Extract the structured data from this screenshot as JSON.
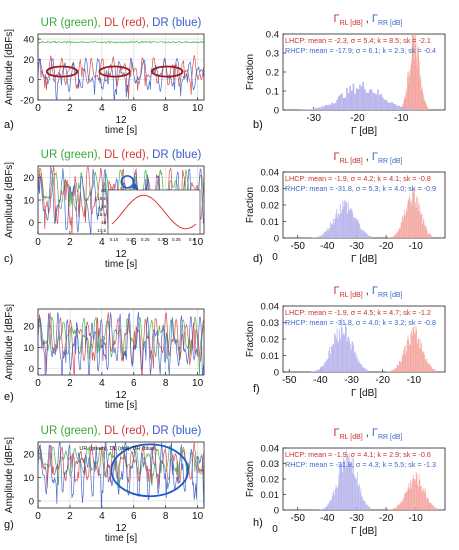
{
  "colors": {
    "ur": "#3aa83a",
    "dl": "#d83a3a",
    "dr": "#3a5cc8",
    "lhcp_fill": "#f4a6a0",
    "rhcp_fill": "#b8b6ec",
    "lhcp_text": "#c8302a",
    "rhcp_text": "#3a68c8",
    "axis": "#000000"
  },
  "chart_data": [
    {
      "panel": "a)",
      "type": "line",
      "title_parts": [
        "UR (green), ",
        "DL (red), ",
        "DR (blue)"
      ],
      "title_colors": [
        "ur",
        "dl",
        "dr"
      ],
      "ylabel": "Amplitude [dBFs]",
      "xlabel_extra": "12",
      "xlabel": "time [s]",
      "xlim": [
        0,
        10.4
      ],
      "ylim": [
        -20,
        45
      ],
      "xticks": [
        0,
        2,
        4,
        6,
        8,
        10
      ],
      "yticks": [
        -20,
        0,
        20,
        40
      ],
      "grid": true,
      "series": [
        {
          "color": "ur",
          "kind": "flat",
          "level": 37,
          "amp": 1.2,
          "freq": 9.0
        },
        {
          "color": "dl",
          "kind": "osc",
          "level": 8,
          "amp": 9,
          "freq": 2.4
        },
        {
          "color": "dr",
          "kind": "osc",
          "level": 5,
          "amp": 10,
          "freq": 2.1
        }
      ],
      "annotations": [
        {
          "kind": "ellipse",
          "cx": 1.5,
          "cy": 8,
          "rx": 0.95,
          "ry": 5
        },
        {
          "kind": "ellipse",
          "cx": 4.8,
          "cy": 8,
          "rx": 0.95,
          "ry": 5
        },
        {
          "kind": "ellipse",
          "cx": 8.1,
          "cy": 8,
          "rx": 0.95,
          "ry": 5
        }
      ]
    },
    {
      "panel": "b)",
      "type": "histogram",
      "title_parts": [
        "Γ",
        "RL [dB]",
        " , ",
        "Γ",
        "RR [dB]"
      ],
      "ylabel": "Fraction",
      "xlabel": "Γ [dB]",
      "xlim": [
        -37,
        0
      ],
      "ylim": [
        0,
        0.4
      ],
      "xticks": [
        -30,
        -20,
        -10
      ],
      "yticks": [
        0,
        0.1,
        0.2,
        0.3,
        0.4
      ],
      "legend": [
        {
          "text": "LHCP: mean = -2.3,   σ = 5.4; k = 8.5; sk = -2.1",
          "color": "lhcp_text"
        },
        {
          "text": "RHCP: mean = -17.9; σ = 6.1; k = 2.3; sk = -0.4",
          "color": "rhcp_text"
        }
      ],
      "series": [
        {
          "name": "LHCP",
          "color": "lhcp_fill",
          "mean": -7,
          "sigma": 1.2,
          "peak": 0.37
        },
        {
          "name": "RHCP",
          "color": "rhcp_fill",
          "mean": -19,
          "sigma": 4.5,
          "peak": 0.13
        }
      ]
    },
    {
      "panel": "c)",
      "type": "line",
      "title_parts": [
        "UR (green), ",
        "DL (red), ",
        "DR (blue)"
      ],
      "title_colors": [
        "ur",
        "dl",
        "dr"
      ],
      "ylabel": "Amplitude [dBFs]",
      "xlabel_extra": "12",
      "xlabel": "time [s]",
      "xlim": [
        0,
        10.4
      ],
      "ylim": [
        -5,
        25
      ],
      "xticks": [
        0,
        2,
        4,
        6,
        8,
        10
      ],
      "yticks": [
        0,
        10,
        20
      ],
      "grid": true,
      "series": [
        {
          "color": "ur",
          "kind": "osc",
          "level": 14,
          "amp": 6,
          "freq": 1.7
        },
        {
          "color": "dl",
          "kind": "osc",
          "level": 12,
          "amp": 8,
          "freq": 2.0
        },
        {
          "color": "dr",
          "kind": "osc",
          "level": 10,
          "amp": 9,
          "freq": 2.3
        }
      ],
      "inset": {
        "xticks": [
          "0.15",
          "0.2",
          "0.25",
          "0.3",
          "0.35",
          "0.4"
        ],
        "yticks": [
          "17.5",
          "18",
          "18.5",
          "19",
          "19.5",
          "20"
        ]
      }
    },
    {
      "panel": "d)",
      "type": "histogram",
      "title_parts": [
        "Γ",
        "RL [dB]",
        " , ",
        "Γ",
        "RR [dB]"
      ],
      "ylabel": "Fraction",
      "xlabel": "Γ [dB]",
      "xlabel_extra": "0",
      "xlim": [
        -55,
        0
      ],
      "ylim": [
        0,
        0.04
      ],
      "xticks": [
        -50,
        -40,
        -30,
        -20,
        -10
      ],
      "yticks": [
        0,
        0.01,
        0.02,
        0.03,
        0.04
      ],
      "legend": [
        {
          "text": "LHCP: mean = -1.9,   σ = 4.2; k = 4.1; sk = -0.8",
          "color": "lhcp_text"
        },
        {
          "text": "RHCP: mean = -31.8, σ = 5.3; k = 4.0; sk = -0.9",
          "color": "rhcp_text"
        }
      ],
      "series": [
        {
          "name": "LHCP",
          "color": "lhcp_fill",
          "mean": -11,
          "sigma": 2.6,
          "peak": 0.027
        },
        {
          "name": "RHCP",
          "color": "rhcp_fill",
          "mean": -34,
          "sigma": 3.6,
          "peak": 0.021
        }
      ]
    },
    {
      "panel": "e)",
      "type": "line",
      "title_parts": [],
      "ylabel": "Amplitude [dBFs]",
      "xlabel_extra": "12",
      "xlabel": "time [s]",
      "xlim": [
        0,
        10.4
      ],
      "ylim": [
        -3,
        28
      ],
      "xticks": [
        0,
        2,
        4,
        6,
        8,
        10
      ],
      "yticks": [
        0,
        10,
        20
      ],
      "grid": true,
      "series": [
        {
          "color": "ur",
          "kind": "osc",
          "level": 15,
          "amp": 6,
          "freq": 2.2
        },
        {
          "color": "dl",
          "kind": "osc",
          "level": 14,
          "amp": 7,
          "freq": 2.6
        },
        {
          "color": "dr",
          "kind": "osc",
          "level": 12,
          "amp": 9,
          "freq": 2.9
        }
      ]
    },
    {
      "panel": "f)",
      "type": "histogram",
      "title_parts": [
        "Γ",
        "RL [dB]",
        " , ",
        "Γ",
        "RR [dB]"
      ],
      "ylabel": "Fraction",
      "xlabel": "Γ [dB]",
      "xlim": [
        -52,
        0
      ],
      "ylim": [
        0,
        0.04
      ],
      "xticks": [
        -50,
        -40,
        -30,
        -20,
        -10
      ],
      "yticks": [
        0,
        0.01,
        0.02,
        0.03,
        0.04
      ],
      "legend": [
        {
          "text": "LHCP: mean = -1.9,   σ = 4.5; k = 4.7; sk = -1.2",
          "color": "lhcp_text"
        },
        {
          "text": "RHCP: mean = -31.8, σ = 4.0; k = 3.2; sk = -0.8",
          "color": "rhcp_text"
        }
      ],
      "series": [
        {
          "name": "LHCP",
          "color": "lhcp_fill",
          "mean": -10,
          "sigma": 2.8,
          "peak": 0.024
        },
        {
          "name": "RHCP",
          "color": "rhcp_fill",
          "mean": -33,
          "sigma": 3.2,
          "peak": 0.028
        }
      ]
    },
    {
      "panel": "g)",
      "type": "line",
      "title_parts": [
        "UR (green), ",
        "DL (red), ",
        "DR (blue)"
      ],
      "title_colors": [
        "ur",
        "dl",
        "dr"
      ],
      "inner_title": "UR (green), DL (red), DR (blue)",
      "ylabel": "Amplitude [dBFs]",
      "xlabel_extra": "12",
      "xlabel": "time [s]",
      "xlim": [
        0,
        10.4
      ],
      "ylim": [
        -3,
        25
      ],
      "xticks": [
        0,
        2,
        4,
        6,
        8,
        10
      ],
      "yticks": [
        0,
        10,
        20
      ],
      "grid": true,
      "series": [
        {
          "color": "ur",
          "kind": "osc",
          "level": 17,
          "amp": 4,
          "freq": 2.0
        },
        {
          "color": "dl",
          "kind": "osc",
          "level": 16,
          "amp": 5,
          "freq": 2.4
        },
        {
          "color": "dr",
          "kind": "osc",
          "level": 13,
          "amp": 8,
          "freq": 2.7
        }
      ],
      "annotations": [
        {
          "kind": "ellipse",
          "cx": 7.0,
          "cy": 13,
          "rx": 2.4,
          "ry": 11
        }
      ]
    },
    {
      "panel": "h)",
      "type": "histogram",
      "title_parts": [
        "Γ",
        "RL [dB]",
        " , ",
        "Γ",
        "RR [dB]"
      ],
      "ylabel": "Fraction",
      "xlabel": "Γ [dB]",
      "xlabel_extra": "0",
      "xlim": [
        -55,
        0
      ],
      "ylim": [
        0,
        0.04
      ],
      "xticks": [
        -50,
        -40,
        -30,
        -20,
        -10
      ],
      "yticks": [
        0,
        0.01,
        0.02,
        0.03,
        0.04
      ],
      "legend": [
        {
          "text": "LHCP: mean = -1.9,   σ = 4.1; k = 2.9; sk = -0.6",
          "color": "lhcp_text"
        },
        {
          "text": "RHCP: mean = -31.8, σ = 4.3; k = 5.5; sk = -1.3",
          "color": "rhcp_text"
        }
      ],
      "series": [
        {
          "name": "LHCP",
          "color": "lhcp_fill",
          "mean": -10,
          "sigma": 3.0,
          "peak": 0.021
        },
        {
          "name": "RHCP",
          "color": "rhcp_fill",
          "mean": -33,
          "sigma": 3.0,
          "peak": 0.038
        }
      ]
    }
  ]
}
